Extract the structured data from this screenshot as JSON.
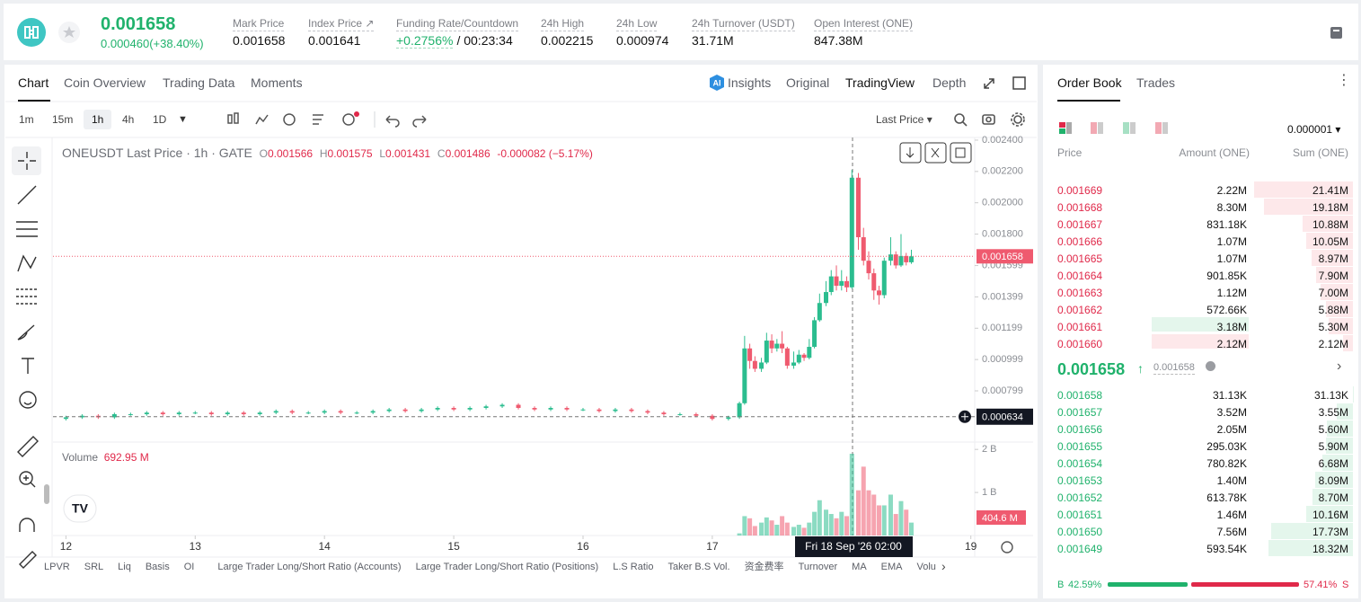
{
  "header": {
    "price": "0.001658",
    "change": "0.000460(+38.40%)",
    "stats": [
      {
        "label": "Mark Price",
        "value": "0.001658"
      },
      {
        "label": "Index Price ↗",
        "value": "0.001641"
      },
      {
        "label": "Funding Rate/Countdown",
        "value": "+0.2756%",
        "extra": "/ 00:23:34"
      },
      {
        "label": "24h High",
        "value": "0.002215"
      },
      {
        "label": "24h Low",
        "value": "0.000974"
      },
      {
        "label": "24h Turnover (USDT)",
        "value": "31.71M"
      },
      {
        "label": "Open Interest (ONE)",
        "value": "847.38M"
      }
    ]
  },
  "chart_tabs": [
    "Chart",
    "Coin Overview",
    "Trading Data",
    "Moments"
  ],
  "view_tabs": [
    "Insights",
    "Original",
    "TradingView",
    "Depth"
  ],
  "intervals": [
    "1m",
    "15m",
    "1h",
    "4h",
    "1D"
  ],
  "price_type": "Last Price",
  "legend": {
    "symbol": "ONEUSDT Last Price · 1h · GATE",
    "open": "0.001566",
    "high": "0.001575",
    "low": "0.001431",
    "close": "0.001486",
    "change": "-0.000082 (−5.17%)"
  },
  "volume_legend": {
    "label": "Volume",
    "value": "692.95 M"
  },
  "last_price": 0.001658,
  "crosshair_price": 0.000634,
  "volume_badge": "404.6 M",
  "crosshair_time": "Fri 18 Sep '26   02:00",
  "indicators": [
    "LPVR",
    "SRL",
    "Liq",
    "Basis",
    "OI",
    "Large Trader Long/Short Ratio (Accounts)",
    "Large Trader Long/Short Ratio (Positions)",
    "L.S Ratio",
    "Taker B.S Vol.",
    "资金费率",
    "Turnover",
    "MA",
    "EMA",
    "Volu"
  ],
  "chart_data": [
    {
      "type": "candlestick",
      "up_color": "#2bbd8f",
      "down_color": "#ef5a6f",
      "xlim": [
        11.9,
        19.03
      ],
      "ylim": [
        0.000472,
        0.002417
      ],
      "yticks": [
        {
          "value": 0.0024,
          "label": "0.002400"
        },
        {
          "value": 0.0022,
          "label": "0.002200"
        },
        {
          "value": 0.002,
          "label": "0.002000"
        },
        {
          "value": 0.0018,
          "label": "0.001800"
        },
        0.001599,
        0.001399,
        0.001199,
        0.000999,
        0.000799
      ],
      "x": [
        12,
        12.125,
        12.25,
        12.375,
        12.5,
        12.625,
        12.75,
        12.875,
        13,
        13.125,
        13.25,
        13.375,
        13.5,
        13.625,
        13.75,
        13.875,
        14,
        14.125,
        14.25,
        14.375,
        14.5,
        14.625,
        14.75,
        14.875,
        15,
        15.125,
        15.25,
        15.375,
        15.5,
        15.625,
        15.75,
        15.875,
        16,
        16.125,
        16.25,
        16.375,
        16.5,
        16.625,
        16.75,
        16.875,
        17,
        17.125,
        17.21,
        17.25,
        17.29,
        17.33,
        17.38,
        17.42,
        17.46,
        17.5,
        17.54,
        17.58,
        17.63,
        17.67,
        17.71,
        17.75,
        17.79,
        17.83,
        17.88,
        17.92,
        17.96,
        18,
        18.04,
        18.08,
        18.13,
        18.17,
        18.21,
        18.25,
        18.29,
        18.33,
        18.38,
        18.42,
        18.46,
        18.5,
        18.54
      ],
      "open": [
        0.00062,
        0.00063,
        0.00064,
        0.00063,
        0.00065,
        0.00065,
        0.00066,
        0.00065,
        0.00066,
        0.00066,
        0.00065,
        0.00066,
        0.00065,
        0.00066,
        0.00067,
        0.00066,
        0.00066,
        0.00067,
        0.00066,
        0.00066,
        0.00067,
        0.00068,
        0.00067,
        0.00068,
        0.00069,
        0.00068,
        0.00069,
        0.0007,
        0.00071,
        0.00069,
        0.00068,
        0.00069,
        0.00068,
        0.00068,
        0.00067,
        0.00068,
        0.00067,
        0.00066,
        0.00065,
        0.00065,
        0.00064,
        0.00062,
        0.00063,
        0.00072,
        0.00107,
        0.00099,
        0.00094,
        0.00098,
        0.00112,
        0.00107,
        0.0011,
        0.00107,
        0.00096,
        0.00098,
        0.00103,
        0.00101,
        0.00108,
        0.00125,
        0.00136,
        0.00143,
        0.00153,
        0.00147,
        0.0015,
        0.00146,
        0.00216,
        0.00178,
        0.00163,
        0.00155,
        0.00144,
        0.00141,
        0.00163,
        0.00167,
        0.0016,
        0.00166,
        0.00162
      ],
      "high": [
        0.00064,
        0.00065,
        0.00065,
        0.00066,
        0.00066,
        0.00067,
        0.00067,
        0.00067,
        0.00067,
        0.00067,
        0.00067,
        0.00067,
        0.00067,
        0.00068,
        0.00068,
        0.00067,
        0.00068,
        0.00068,
        0.00067,
        0.00068,
        0.00069,
        0.00069,
        0.00069,
        0.0007,
        0.0007,
        0.0007,
        0.00071,
        0.00072,
        0.00072,
        0.0007,
        0.0007,
        0.0007,
        0.00069,
        0.00069,
        0.00069,
        0.00069,
        0.00068,
        0.00067,
        0.00066,
        0.00066,
        0.00065,
        0.00064,
        0.00073,
        0.00115,
        0.0011,
        0.00102,
        0.00101,
        0.00117,
        0.00116,
        0.00113,
        0.00118,
        0.00108,
        0.00105,
        0.00106,
        0.00104,
        0.00113,
        0.00127,
        0.00142,
        0.0015,
        0.00157,
        0.0016,
        0.00157,
        0.00153,
        0.00221,
        0.00219,
        0.00184,
        0.00169,
        0.00158,
        0.00147,
        0.00165,
        0.00178,
        0.00169,
        0.0018,
        0.00168,
        0.0017
      ],
      "low": [
        0.00061,
        0.00062,
        0.00062,
        0.00062,
        0.00064,
        0.00064,
        0.00064,
        0.00064,
        0.00065,
        0.00064,
        0.00064,
        0.00064,
        0.00064,
        0.00065,
        0.00065,
        0.00065,
        0.00065,
        0.00065,
        0.00065,
        0.00065,
        0.00066,
        0.00066,
        0.00066,
        0.00067,
        0.00067,
        0.00067,
        0.00068,
        0.00069,
        0.00068,
        0.00067,
        0.00067,
        0.00067,
        0.00067,
        0.00066,
        0.00066,
        0.00066,
        0.00065,
        0.00064,
        0.00064,
        0.00063,
        0.00061,
        0.00061,
        0.00062,
        0.00071,
        0.00094,
        0.00092,
        0.00092,
        0.00097,
        0.00104,
        0.00105,
        0.00104,
        0.00094,
        0.00094,
        0.00097,
        0.00099,
        0.001,
        0.00107,
        0.00124,
        0.00134,
        0.00141,
        0.00144,
        0.00144,
        0.00143,
        0.00145,
        0.0017,
        0.0016,
        0.00151,
        0.00138,
        0.00135,
        0.00139,
        0.0016,
        0.00158,
        0.00159,
        0.0016,
        0.00161
      ],
      "close": [
        0.00063,
        0.00064,
        0.00063,
        0.00065,
        0.00065,
        0.00066,
        0.00065,
        0.00066,
        0.00066,
        0.00065,
        0.00066,
        0.00065,
        0.00066,
        0.00067,
        0.00066,
        0.00066,
        0.00067,
        0.00066,
        0.00066,
        0.00067,
        0.00068,
        0.00067,
        0.00068,
        0.00069,
        0.00068,
        0.00069,
        0.0007,
        0.00071,
        0.00069,
        0.00068,
        0.00069,
        0.00068,
        0.00068,
        0.00067,
        0.00068,
        0.00067,
        0.00066,
        0.00065,
        0.00065,
        0.00064,
        0.00062,
        0.00063,
        0.00072,
        0.00107,
        0.00099,
        0.00094,
        0.00098,
        0.00112,
        0.00107,
        0.0011,
        0.00107,
        0.00096,
        0.00098,
        0.00103,
        0.00101,
        0.00108,
        0.00125,
        0.00136,
        0.00143,
        0.00153,
        0.00147,
        0.0015,
        0.00146,
        0.00216,
        0.00178,
        0.00163,
        0.00155,
        0.00144,
        0.00141,
        0.00163,
        0.00167,
        0.0016,
        0.00166,
        0.00162,
        0.001658
      ]
    },
    {
      "type": "bar",
      "xlim": [
        11.9,
        19.03
      ],
      "xticks": [
        12,
        13,
        14,
        15,
        16,
        17,
        18,
        19
      ],
      "ylim": [
        0,
        2.15
      ],
      "yticks": [
        {
          "value": 2,
          "label": "2 B"
        },
        {
          "value": 1,
          "label": "1 B"
        }
      ],
      "x": [
        17.21,
        17.25,
        17.29,
        17.33,
        17.38,
        17.42,
        17.46,
        17.5,
        17.54,
        17.58,
        17.63,
        17.67,
        17.71,
        17.75,
        17.79,
        17.83,
        17.88,
        17.92,
        17.96,
        18,
        18.04,
        18.08,
        18.13,
        18.17,
        18.21,
        18.25,
        18.29,
        18.33,
        18.38,
        18.42,
        18.46,
        18.5,
        18.54
      ],
      "values": [
        0.05,
        0.45,
        0.4,
        0.22,
        0.3,
        0.42,
        0.35,
        0.25,
        0.45,
        0.3,
        0.2,
        0.25,
        0.18,
        0.3,
        0.55,
        0.82,
        0.6,
        0.5,
        0.4,
        0.55,
        0.45,
        1.9,
        1.05,
        1.6,
        1.05,
        0.95,
        0.7,
        0.7,
        0.95,
        0.5,
        0.8,
        0.6,
        0.3
      ]
    }
  ],
  "order_book": {
    "tabs": [
      "Order Book",
      "Trades"
    ],
    "precision": "0.000001",
    "columns": [
      "Price",
      "Amount (ONE)",
      "Sum (ONE)"
    ],
    "asks": [
      [
        "0.001669",
        "2.22M",
        "21.41M"
      ],
      [
        "0.001668",
        "8.30M",
        "19.18M"
      ],
      [
        "0.001667",
        "831.18K",
        "10.88M"
      ],
      [
        "0.001666",
        "1.07M",
        "10.05M"
      ],
      [
        "0.001665",
        "1.07M",
        "8.97M"
      ],
      [
        "0.001664",
        "901.85K",
        "7.90M"
      ],
      [
        "0.001663",
        "1.12M",
        "7.00M"
      ],
      [
        "0.001662",
        "572.66K",
        "5.88M"
      ],
      [
        "0.001661",
        "3.18M",
        "5.30M"
      ],
      [
        "0.001660",
        "2.12M",
        "2.12M"
      ]
    ],
    "mid": {
      "price": "0.001658",
      "mark": "0.001658"
    },
    "bids": [
      [
        "0.001658",
        "31.13K",
        "31.13K"
      ],
      [
        "0.001657",
        "3.52M",
        "3.55M"
      ],
      [
        "0.001656",
        "2.05M",
        "5.60M"
      ],
      [
        "0.001655",
        "295.03K",
        "5.90M"
      ],
      [
        "0.001654",
        "780.82K",
        "6.68M"
      ],
      [
        "0.001653",
        "1.40M",
        "8.09M"
      ],
      [
        "0.001652",
        "613.78K",
        "8.70M"
      ],
      [
        "0.001651",
        "1.46M",
        "10.16M"
      ],
      [
        "0.001650",
        "7.56M",
        "17.73M"
      ],
      [
        "0.001649",
        "593.54K",
        "18.32M"
      ]
    ],
    "ratio": {
      "buy_label": "B",
      "buy": 42.59,
      "buy_text": "42.59%",
      "sell": 57.41,
      "sell_text": "57.41%",
      "sell_label": "S"
    }
  }
}
